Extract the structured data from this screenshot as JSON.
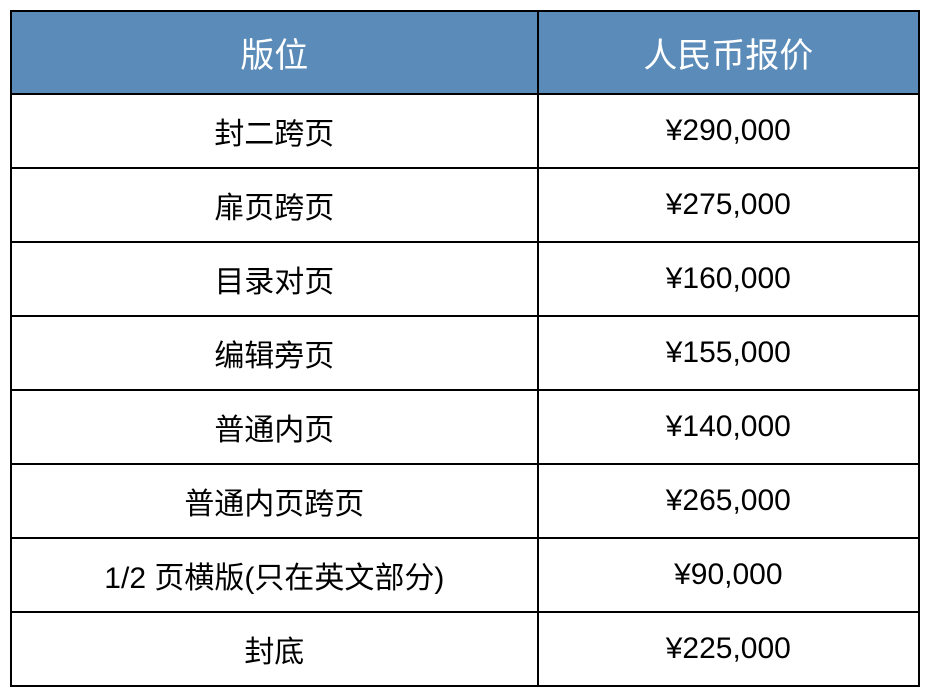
{
  "table": {
    "header_bg_color": "#5b8bb8",
    "header_text_color": "#ffffff",
    "border_color": "#000000",
    "cell_text_color": "#000000",
    "header_fontsize": 34,
    "cell_fontsize": 30,
    "columns": [
      {
        "label": "版位",
        "width_pct": 58,
        "key": "position"
      },
      {
        "label": "人民币报价",
        "width_pct": 42,
        "key": "price"
      }
    ],
    "rows": [
      {
        "position": "封二跨页",
        "price": "¥290,000"
      },
      {
        "position": "扉页跨页",
        "price": "¥275,000"
      },
      {
        "position": "目录对页",
        "price": "¥160,000"
      },
      {
        "position": "编辑旁页",
        "price": "¥155,000"
      },
      {
        "position": "普通内页",
        "price": "¥140,000"
      },
      {
        "position": "普通内页跨页",
        "price": "¥265,000"
      },
      {
        "position": "1/2 页横版(只在英文部分)",
        "price": "¥90,000"
      },
      {
        "position": "封底",
        "price": "¥225,000"
      }
    ]
  }
}
